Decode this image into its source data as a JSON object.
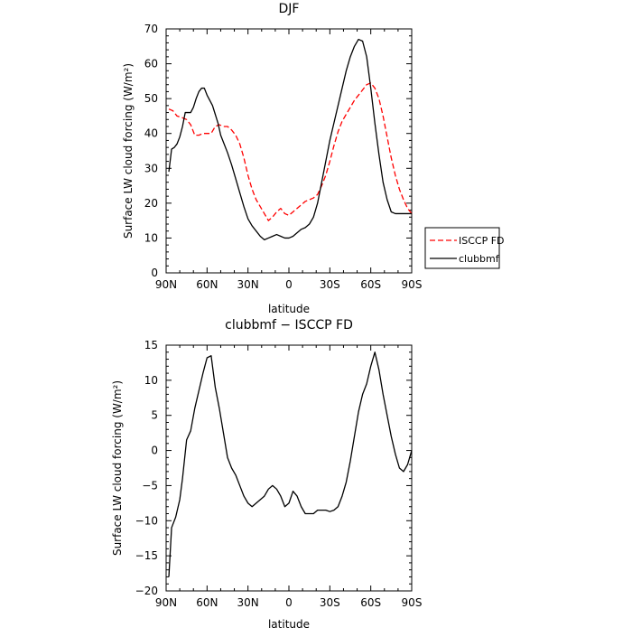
{
  "chart_data": [
    {
      "type": "line",
      "title": "DJF",
      "xlabel": "latitude",
      "ylabel": "Surface LW cloud forcing (W/m²)",
      "xlim": [
        -90,
        90
      ],
      "ylim": [
        0,
        70
      ],
      "x_ticks": [
        -90,
        -60,
        -30,
        0,
        30,
        60,
        90
      ],
      "x_tick_labels": [
        "90N",
        "60N",
        "30N",
        "0",
        "30S",
        "60S",
        "90S"
      ],
      "y_ticks": [
        0,
        10,
        20,
        30,
        40,
        50,
        60,
        70
      ],
      "y_tick_labels": [
        "0",
        "10",
        "20",
        "30",
        "40",
        "50",
        "60",
        "70"
      ],
      "grid": false,
      "legend_position": "right",
      "series": [
        {
          "name": "ISCCP FD",
          "color": "#ff0000",
          "dash": "dashed",
          "x": [
            -88,
            -85,
            -82,
            -78,
            -75,
            -72,
            -69,
            -66,
            -63,
            -60,
            -57,
            -54,
            -51,
            -48,
            -45,
            -42,
            -39,
            -36,
            -33,
            -30,
            -27,
            -24,
            -21,
            -18,
            -15,
            -12,
            -9,
            -6,
            -3,
            0,
            3,
            6,
            9,
            12,
            15,
            18,
            21,
            24,
            27,
            30,
            33,
            36,
            39,
            42,
            45,
            48,
            51,
            54,
            57,
            60,
            63,
            66,
            69,
            72,
            75,
            78,
            81,
            84,
            87,
            90
          ],
          "y": [
            47,
            46.5,
            45,
            44.5,
            44,
            42.5,
            39.5,
            39.5,
            40,
            40,
            40,
            42,
            42.5,
            42,
            42,
            41,
            39.5,
            37,
            33,
            28,
            24,
            21,
            19,
            17,
            15,
            16,
            17.5,
            18.5,
            17,
            16.5,
            17.5,
            18.5,
            19.5,
            20.5,
            21,
            21.5,
            22.5,
            25,
            28,
            32,
            36.5,
            40.5,
            43.5,
            45.5,
            47.5,
            49.5,
            51,
            52.5,
            54,
            54.5,
            53,
            50,
            45,
            39,
            33,
            28,
            24,
            21,
            18.5,
            17
          ]
        },
        {
          "name": "clubbmf",
          "color": "#000000",
          "dash": "solid",
          "x": [
            -88,
            -86,
            -84,
            -82,
            -80,
            -78,
            -76,
            -74,
            -72,
            -70,
            -68,
            -66,
            -64,
            -62,
            -60,
            -58,
            -56,
            -54,
            -52,
            -50,
            -48,
            -45,
            -42,
            -39,
            -36,
            -33,
            -30,
            -27,
            -24,
            -21,
            -18,
            -15,
            -12,
            -9,
            -6,
            -3,
            0,
            3,
            6,
            9,
            12,
            15,
            18,
            21,
            24,
            27,
            30,
            33,
            36,
            39,
            42,
            45,
            48,
            51,
            54,
            57,
            60,
            63,
            66,
            69,
            72,
            75,
            78,
            81,
            84,
            87,
            90
          ],
          "y": [
            29,
            35.5,
            36,
            37,
            39,
            42,
            46,
            46,
            46,
            47.5,
            50,
            52,
            53,
            53,
            51,
            49.5,
            48,
            45.5,
            43,
            39.5,
            37.5,
            34.5,
            31,
            27,
            23,
            19,
            15.5,
            13.5,
            12,
            10.5,
            9.5,
            10,
            10.5,
            11,
            10.5,
            10,
            10,
            10.5,
            11.5,
            12.5,
            13,
            14,
            16,
            20,
            26,
            32,
            38,
            43,
            48,
            53,
            58,
            62,
            65,
            67,
            66.5,
            62,
            53,
            43,
            34,
            26,
            21,
            17.5,
            17,
            17,
            17,
            17,
            17
          ]
        }
      ]
    },
    {
      "type": "line",
      "title": "clubbmf − ISCCP FD",
      "xlabel": "latitude",
      "ylabel": "Surface LW cloud forcing (W/m²)",
      "xlim": [
        -90,
        90
      ],
      "ylim": [
        -20,
        15
      ],
      "x_ticks": [
        -90,
        -60,
        -30,
        0,
        30,
        60,
        90
      ],
      "x_tick_labels": [
        "90N",
        "60N",
        "30N",
        "0",
        "30S",
        "60S",
        "90S"
      ],
      "y_ticks": [
        -20,
        -15,
        -10,
        -5,
        0,
        5,
        10,
        15
      ],
      "y_tick_labels": [
        "−20",
        "−15",
        "−10",
        "−5",
        "0",
        "5",
        "10",
        "15"
      ],
      "grid": false,
      "series": [
        {
          "color": "#000000",
          "dash": "solid",
          "x": [
            -88,
            -86,
            -83,
            -80,
            -78,
            -75,
            -72,
            -69,
            -66,
            -63,
            -60,
            -57,
            -54,
            -51,
            -48,
            -45,
            -42,
            -39,
            -36,
            -33,
            -30,
            -27,
            -24,
            -21,
            -18,
            -15,
            -12,
            -9,
            -6,
            -3,
            0,
            3,
            6,
            9,
            12,
            15,
            18,
            21,
            24,
            27,
            30,
            33,
            36,
            39,
            42,
            45,
            48,
            51,
            54,
            57,
            60,
            63,
            66,
            69,
            72,
            75,
            78,
            81,
            84,
            87,
            90
          ],
          "y": [
            -18,
            -11,
            -9.5,
            -7,
            -4,
            1.5,
            2.8,
            6,
            8.5,
            11,
            13.2,
            13.5,
            9,
            6,
            2.5,
            -1,
            -2.5,
            -3.5,
            -5,
            -6.5,
            -7.5,
            -8,
            -7.5,
            -7,
            -6.5,
            -5.5,
            -5,
            -5.5,
            -6.5,
            -8,
            -7.5,
            -5.8,
            -6.5,
            -8,
            -9,
            -9,
            -9,
            -8.5,
            -8.5,
            -8.5,
            -8.7,
            -8.5,
            -8,
            -6.5,
            -4.5,
            -1.5,
            2,
            5.5,
            8,
            9.5,
            12,
            14,
            11.5,
            8,
            5,
            2,
            -0.5,
            -2.5,
            -3,
            -2,
            0
          ]
        }
      ]
    }
  ]
}
